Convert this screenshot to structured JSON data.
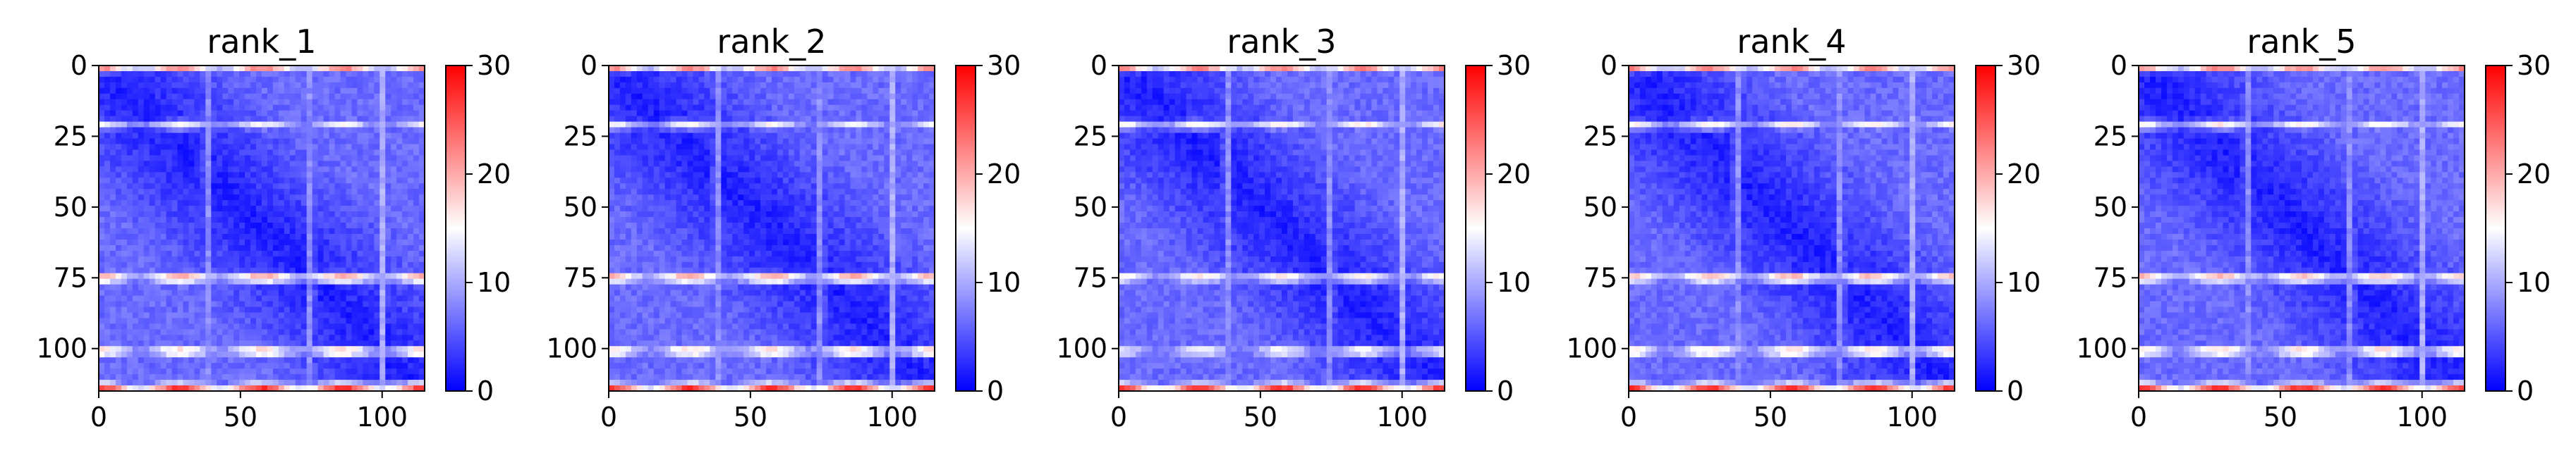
{
  "colors": {
    "colormap": "bwr",
    "low": "#0000ff",
    "mid": "#ffffff",
    "high": "#ff0000"
  },
  "chart_data": [
    {
      "type": "heatmap",
      "title": "rank_1",
      "xlabel": "",
      "ylabel": "",
      "xlim": [
        0,
        115
      ],
      "ylim": [
        115,
        0
      ],
      "xticks": [
        "0",
        "50",
        "100"
      ],
      "yticks": [
        "0",
        "25",
        "50",
        "75",
        "100"
      ],
      "colorbar": {
        "range": [
          0,
          30
        ],
        "ticks": [
          "0",
          "10",
          "20",
          "30"
        ]
      },
      "matrix_size": 115,
      "bright_rows": [
        {
          "row": 0,
          "value": 27
        },
        {
          "row": 21,
          "value": 15
        },
        {
          "row": 75,
          "value": 22
        },
        {
          "row": 101,
          "value": 20
        },
        {
          "row": 114,
          "value": 27
        }
      ],
      "bright_cols": [
        {
          "col": 38,
          "value": 12
        },
        {
          "col": 75,
          "value": 12
        },
        {
          "col": 100,
          "value": 12
        }
      ]
    },
    {
      "type": "heatmap",
      "title": "rank_2",
      "xlabel": "",
      "ylabel": "",
      "xlim": [
        0,
        115
      ],
      "ylim": [
        115,
        0
      ],
      "xticks": [
        "0",
        "50",
        "100"
      ],
      "yticks": [
        "0",
        "25",
        "50",
        "75",
        "100"
      ],
      "colorbar": {
        "range": [
          0,
          30
        ],
        "ticks": [
          "0",
          "10",
          "20",
          "30"
        ]
      },
      "matrix_size": 115,
      "bright_rows": [
        {
          "row": 0,
          "value": 27
        },
        {
          "row": 21,
          "value": 15
        },
        {
          "row": 75,
          "value": 22
        },
        {
          "row": 101,
          "value": 20
        },
        {
          "row": 114,
          "value": 27
        }
      ],
      "bright_cols": [
        {
          "col": 38,
          "value": 12
        },
        {
          "col": 75,
          "value": 12
        },
        {
          "col": 100,
          "value": 12
        }
      ]
    },
    {
      "type": "heatmap",
      "title": "rank_3",
      "xlabel": "",
      "ylabel": "",
      "xlim": [
        0,
        115
      ],
      "ylim": [
        115,
        0
      ],
      "xticks": [
        "0",
        "50",
        "100"
      ],
      "yticks": [
        "0",
        "25",
        "50",
        "75",
        "100"
      ],
      "colorbar": {
        "range": [
          0,
          30
        ],
        "ticks": [
          "0",
          "10",
          "20",
          "30"
        ]
      },
      "matrix_size": 115,
      "bright_rows": [
        {
          "row": 0,
          "value": 27
        },
        {
          "row": 21,
          "value": 16
        },
        {
          "row": 75,
          "value": 18
        },
        {
          "row": 101,
          "value": 17
        },
        {
          "row": 114,
          "value": 27
        }
      ],
      "bright_cols": [
        {
          "col": 38,
          "value": 12
        },
        {
          "col": 75,
          "value": 12
        },
        {
          "col": 100,
          "value": 12
        }
      ]
    },
    {
      "type": "heatmap",
      "title": "rank_4",
      "xlabel": "",
      "ylabel": "",
      "xlim": [
        0,
        115
      ],
      "ylim": [
        115,
        0
      ],
      "xticks": [
        "0",
        "50",
        "100"
      ],
      "yticks": [
        "0",
        "25",
        "50",
        "75",
        "100"
      ],
      "colorbar": {
        "range": [
          0,
          30
        ],
        "ticks": [
          "0",
          "10",
          "20",
          "30"
        ]
      },
      "matrix_size": 115,
      "bright_rows": [
        {
          "row": 0,
          "value": 27
        },
        {
          "row": 21,
          "value": 16
        },
        {
          "row": 75,
          "value": 21
        },
        {
          "row": 101,
          "value": 20
        },
        {
          "row": 114,
          "value": 27
        }
      ],
      "bright_cols": [
        {
          "col": 38,
          "value": 12
        },
        {
          "col": 75,
          "value": 12
        },
        {
          "col": 100,
          "value": 12
        }
      ]
    },
    {
      "type": "heatmap",
      "title": "rank_5",
      "xlabel": "",
      "ylabel": "",
      "xlim": [
        0,
        115
      ],
      "ylim": [
        115,
        0
      ],
      "xticks": [
        "0",
        "50",
        "100"
      ],
      "yticks": [
        "0",
        "25",
        "50",
        "75",
        "100"
      ],
      "colorbar": {
        "range": [
          0,
          30
        ],
        "ticks": [
          "0",
          "10",
          "20",
          "30"
        ]
      },
      "matrix_size": 115,
      "bright_rows": [
        {
          "row": 0,
          "value": 27
        },
        {
          "row": 21,
          "value": 16
        },
        {
          "row": 75,
          "value": 21
        },
        {
          "row": 101,
          "value": 20
        },
        {
          "row": 114,
          "value": 27
        }
      ],
      "bright_cols": [
        {
          "col": 38,
          "value": 12
        },
        {
          "col": 75,
          "value": 12
        },
        {
          "col": 100,
          "value": 12
        }
      ]
    }
  ]
}
